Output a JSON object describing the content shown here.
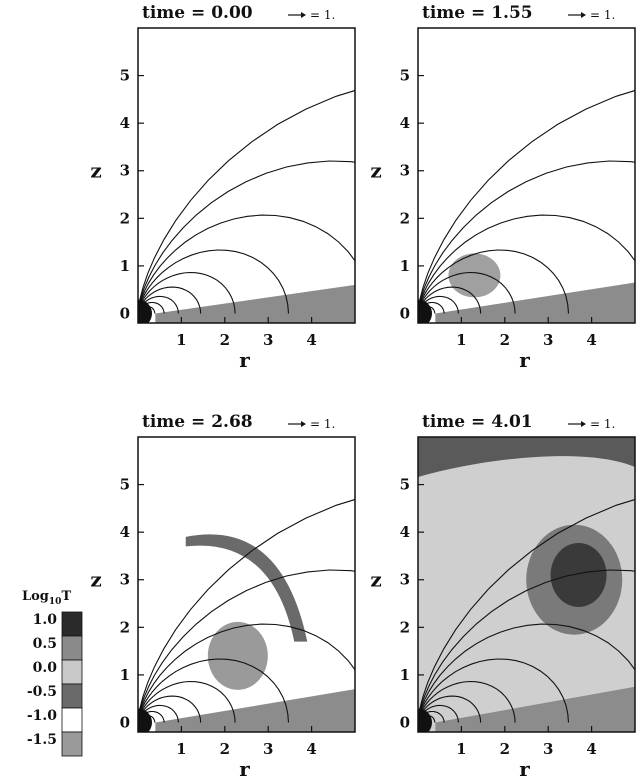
{
  "figure": {
    "panels": [
      {
        "title": "time = 0.00",
        "vector_label": "= 1.",
        "xlabel": "r",
        "ylabel": "z",
        "xticks": [
          "1",
          "2",
          "3",
          "4"
        ],
        "yticks": [
          "0",
          "1",
          "2",
          "3",
          "4",
          "5"
        ],
        "xlim": [
          0,
          5
        ],
        "ylim": [
          -0.2,
          6
        ]
      },
      {
        "title": "time = 1.55",
        "vector_label": "= 1.",
        "xlabel": "r",
        "ylabel": "z",
        "xticks": [
          "1",
          "2",
          "3",
          "4"
        ],
        "yticks": [
          "0",
          "1",
          "2",
          "3",
          "4",
          "5"
        ],
        "xlim": [
          0,
          5
        ],
        "ylim": [
          -0.2,
          6
        ]
      },
      {
        "title": "time = 2.68",
        "vector_label": "= 1.",
        "xlabel": "r",
        "ylabel": "z",
        "xticks": [
          "1",
          "2",
          "3",
          "4"
        ],
        "yticks": [
          "0",
          "1",
          "2",
          "3",
          "4",
          "5"
        ],
        "xlim": [
          0,
          5
        ],
        "ylim": [
          -0.2,
          6
        ]
      },
      {
        "title": "time = 4.01",
        "vector_label": "= 1.",
        "xlabel": "r",
        "ylabel": "z",
        "xticks": [
          "1",
          "2",
          "3",
          "4"
        ],
        "yticks": [
          "0",
          "1",
          "2",
          "3",
          "4",
          "5"
        ],
        "xlim": [
          0,
          5
        ],
        "ylim": [
          -0.2,
          6
        ]
      }
    ],
    "colorbar": {
      "title_base": "Log",
      "title_sub": "10",
      "title_var": "T",
      "labels": [
        "1.0",
        "0.5",
        "0.0",
        "-0.5",
        "-1.0",
        "-1.5"
      ],
      "levels": [
        1.0,
        0.5,
        0.0,
        -0.5,
        -1.0,
        -1.5
      ],
      "colors": [
        "#2a2a2a",
        "#8a8a8a",
        "#c8c8c8",
        "#6a6a6a",
        "#ffffff",
        "#9a9a9a"
      ]
    }
  }
}
